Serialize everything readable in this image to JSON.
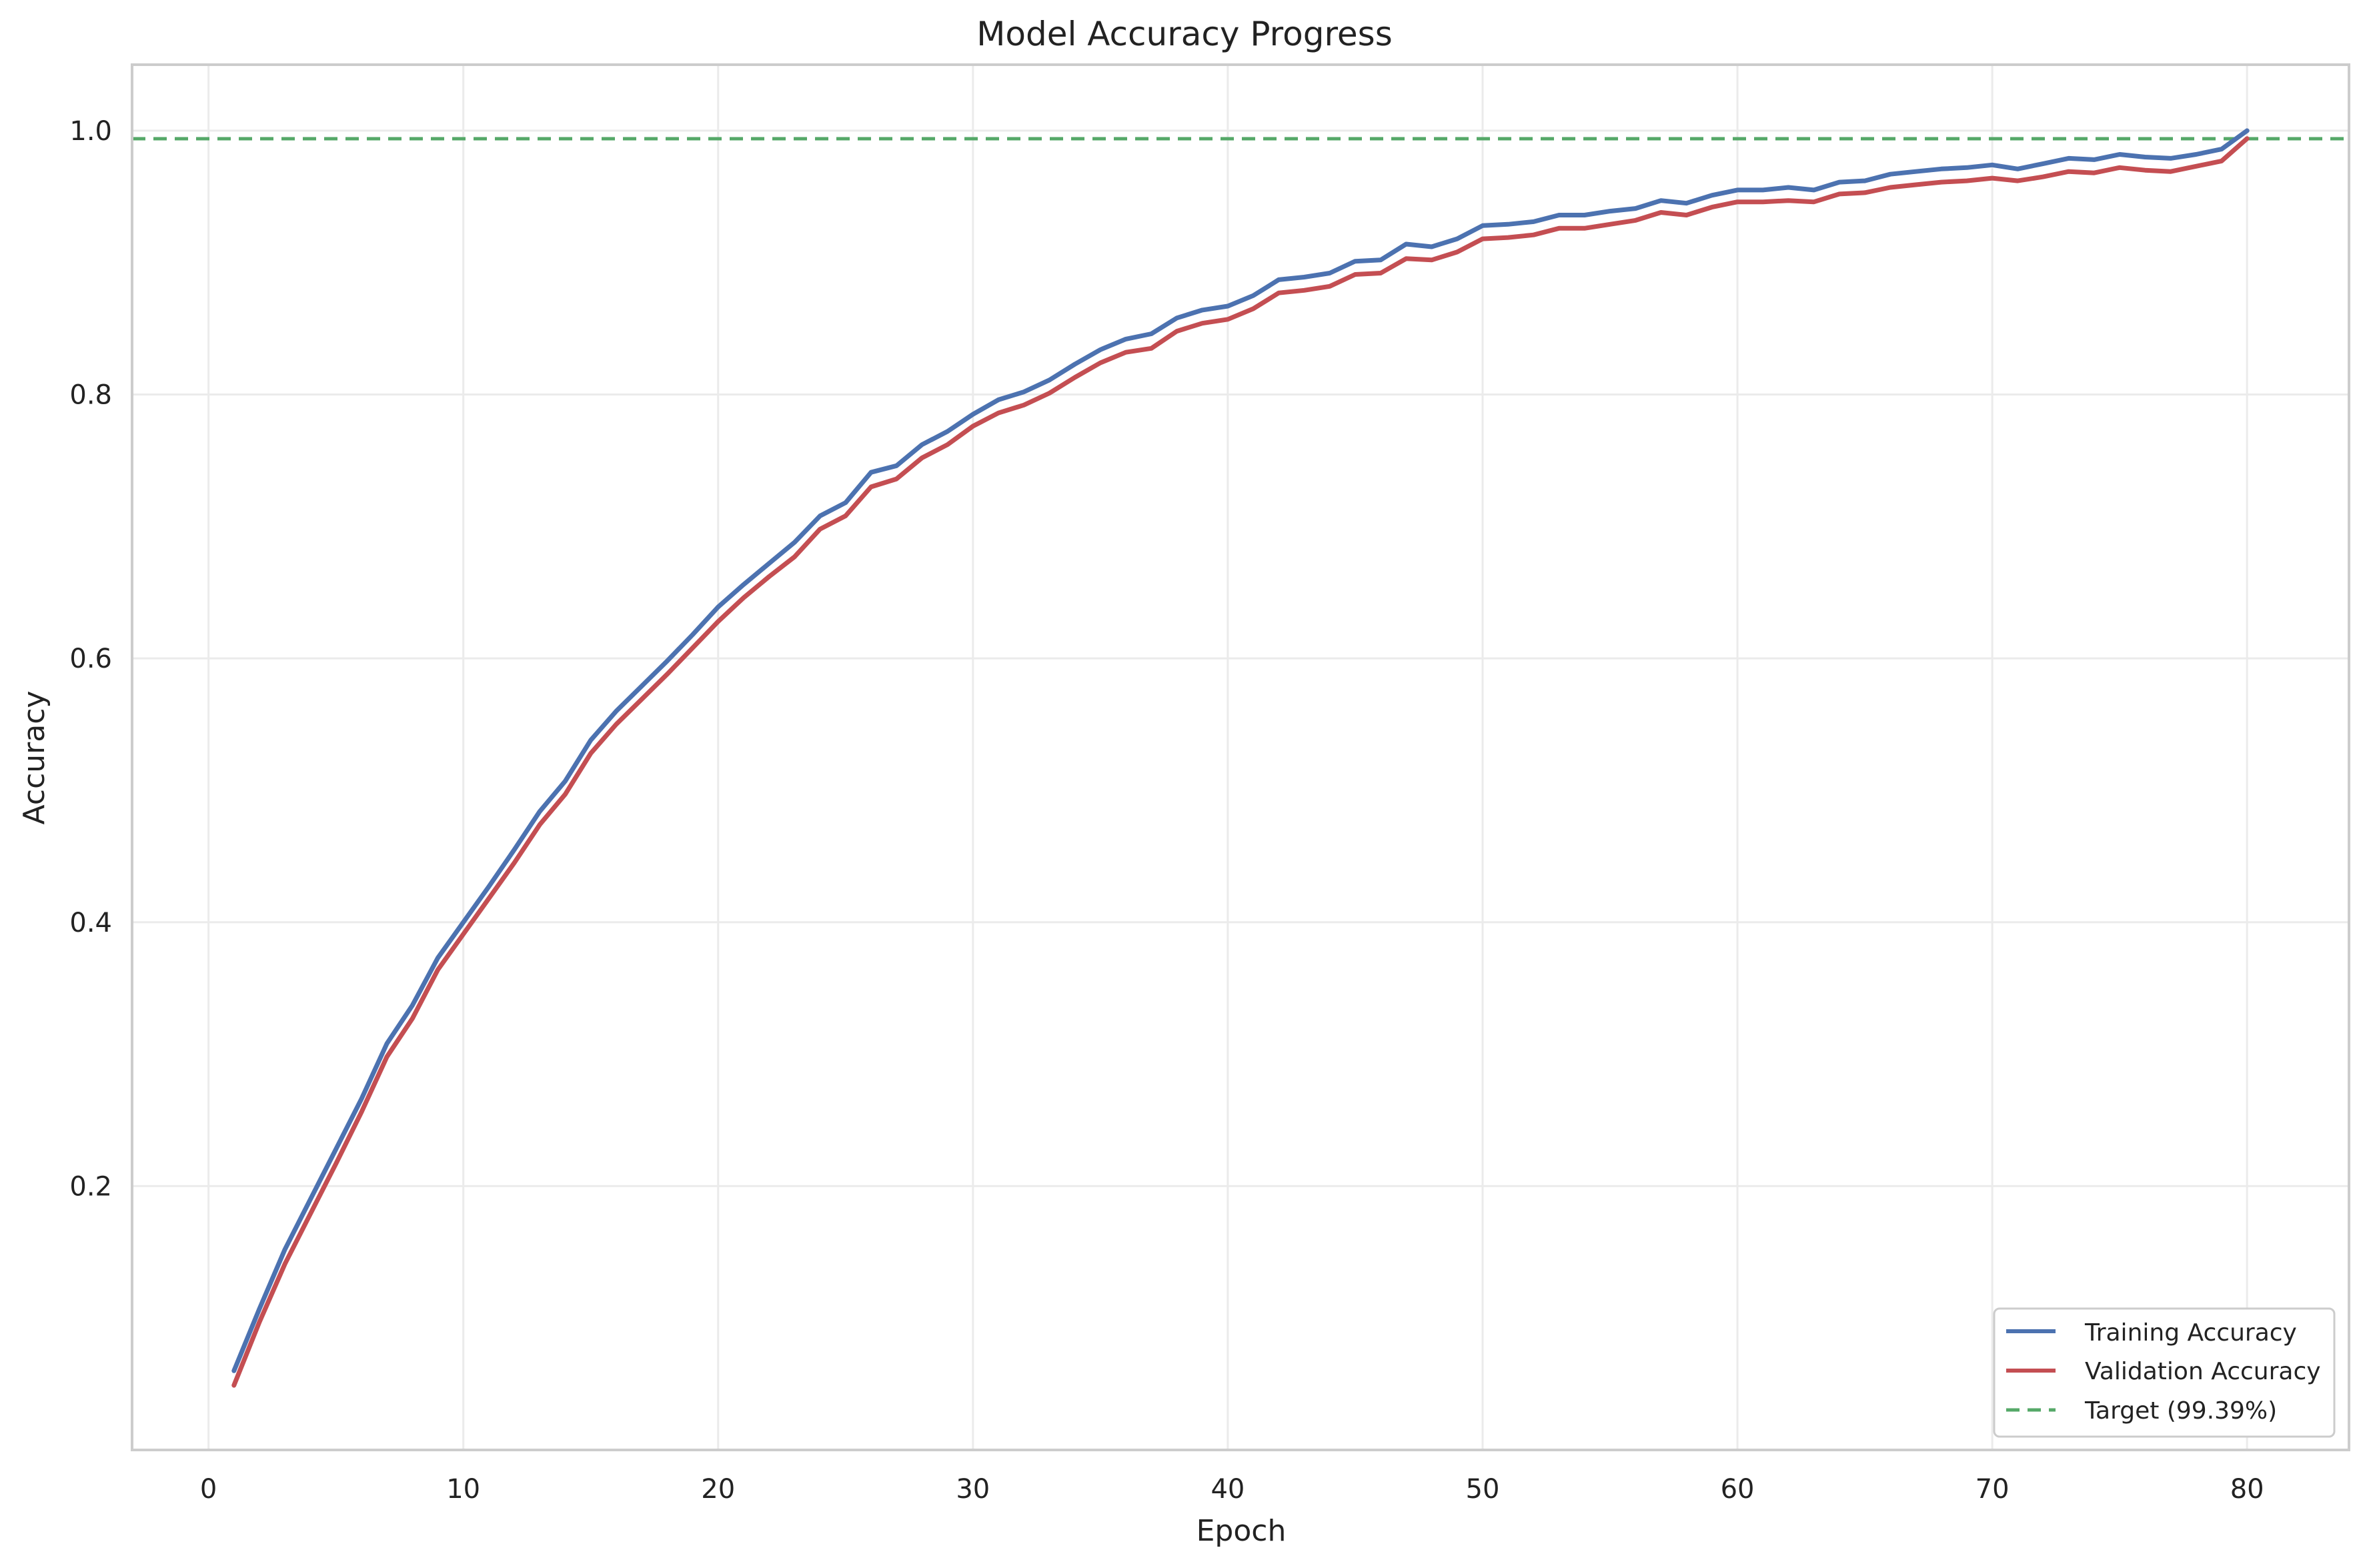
{
  "chart_data": {
    "type": "line",
    "title": "Model Accuracy Progress",
    "xlabel": "Epoch",
    "ylabel": "Accuracy",
    "xlim": [
      -3,
      84
    ],
    "ylim": [
      0.0,
      1.05
    ],
    "xticks": [
      0,
      10,
      20,
      30,
      40,
      50,
      60,
      70,
      80
    ],
    "yticks": [
      0.2,
      0.4,
      0.6,
      0.8,
      1.0
    ],
    "xtick_labels": [
      "0",
      "10",
      "20",
      "30",
      "40",
      "50",
      "60",
      "70",
      "80"
    ],
    "ytick_labels": [
      "0.2",
      "0.4",
      "0.6",
      "0.8",
      "1.0"
    ],
    "grid": true,
    "legend_position": "bottom-right",
    "x": [
      1,
      2,
      3,
      4,
      5,
      6,
      7,
      8,
      9,
      10,
      11,
      12,
      13,
      14,
      15,
      16,
      17,
      18,
      19,
      20,
      21,
      22,
      23,
      24,
      25,
      26,
      27,
      28,
      29,
      30,
      31,
      32,
      33,
      34,
      35,
      36,
      37,
      38,
      39,
      40,
      41,
      42,
      43,
      44,
      45,
      46,
      47,
      48,
      49,
      50,
      51,
      52,
      53,
      54,
      55,
      56,
      57,
      58,
      59,
      60,
      61,
      62,
      63,
      64,
      65,
      66,
      67,
      68,
      69,
      70,
      71,
      72,
      73,
      74,
      75,
      76,
      77,
      78,
      79,
      80
    ],
    "series": [
      {
        "name": "Training Accuracy",
        "color": "#4c72b0",
        "style": "solid",
        "values": [
          0.06,
          0.107,
          0.152,
          0.19,
          0.228,
          0.266,
          0.308,
          0.337,
          0.373,
          0.4,
          0.427,
          0.455,
          0.484,
          0.507,
          0.538,
          0.56,
          0.579,
          0.598,
          0.618,
          0.639,
          0.656,
          0.672,
          0.688,
          0.708,
          0.718,
          0.741,
          0.746,
          0.762,
          0.772,
          0.785,
          0.796,
          0.802,
          0.811,
          0.823,
          0.834,
          0.842,
          0.846,
          0.858,
          0.864,
          0.867,
          0.875,
          0.887,
          0.889,
          0.892,
          0.901,
          0.902,
          0.914,
          0.912,
          0.918,
          0.928,
          0.929,
          0.931,
          0.936,
          0.936,
          0.939,
          0.941,
          0.947,
          0.945,
          0.951,
          0.955,
          0.955,
          0.957,
          0.955,
          0.961,
          0.962,
          0.967,
          0.969,
          0.971,
          0.972,
          0.974,
          0.971,
          0.975,
          0.979,
          0.978,
          0.982,
          0.98,
          0.979,
          0.982,
          0.986,
          1.0
        ]
      },
      {
        "name": "Validation Accuracy",
        "color": "#c44e52",
        "style": "solid",
        "values": [
          0.049,
          0.097,
          0.141,
          0.179,
          0.217,
          0.256,
          0.298,
          0.327,
          0.364,
          0.391,
          0.418,
          0.445,
          0.474,
          0.497,
          0.528,
          0.55,
          0.569,
          0.588,
          0.608,
          0.628,
          0.646,
          0.662,
          0.677,
          0.698,
          0.708,
          0.73,
          0.736,
          0.752,
          0.762,
          0.776,
          0.786,
          0.792,
          0.801,
          0.813,
          0.824,
          0.832,
          0.835,
          0.848,
          0.854,
          0.857,
          0.865,
          0.877,
          0.879,
          0.882,
          0.891,
          0.892,
          0.903,
          0.902,
          0.908,
          0.918,
          0.919,
          0.921,
          0.926,
          0.926,
          0.929,
          0.932,
          0.938,
          0.936,
          0.942,
          0.946,
          0.946,
          0.947,
          0.946,
          0.952,
          0.953,
          0.957,
          0.959,
          0.961,
          0.962,
          0.964,
          0.962,
          0.965,
          0.969,
          0.968,
          0.972,
          0.97,
          0.969,
          0.973,
          0.977,
          0.994
        ]
      }
    ],
    "reference_lines": [
      {
        "name": "Target (99.39%)",
        "y": 0.9939,
        "color": "#55a868",
        "style": "dashed"
      }
    ]
  }
}
